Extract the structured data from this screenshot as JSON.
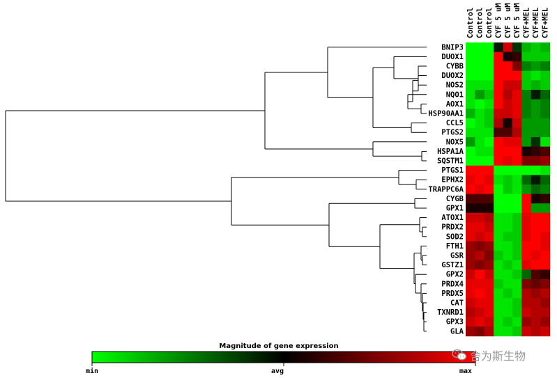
{
  "chart_data": {
    "type": "heatmap",
    "title": "",
    "xlabel": "",
    "ylabel": "",
    "columns": [
      "Control",
      "Control",
      "Control",
      "CYF 5 uM",
      "CYF 5 uM",
      "CYF 5 uM",
      "CYF+MEL",
      "CYF+MEL",
      "CYF+MEL"
    ],
    "rows": [
      "BNIP3",
      "DUOX1",
      "CYBB",
      "DUOX2",
      "NOS2",
      "NQO1",
      "AOX1",
      "HSP90AA1",
      "CCL5",
      "PTGS2",
      "NOX5",
      "HSPA1A",
      "SQSTM1",
      "PTGS1",
      "EPHX2",
      "TRAPPC6A",
      "CYGB",
      "GPX1",
      "ATOX1",
      "PRDX2",
      "SOD2",
      "FTH1",
      "GSR",
      "GSTZ1",
      "GPX2",
      "PRDX4",
      "PRDX5",
      "CAT",
      "TXNRD1",
      "GPX3",
      "GLA"
    ],
    "scale": "-1 = min (green), 0 = avg (black), 1 = max (red)",
    "values": [
      [
        -1,
        -1,
        -1,
        -0.1,
        0.8,
        -0.2,
        -0.7,
        -0.8,
        -0.7
      ],
      [
        -1,
        -1,
        -1,
        1,
        0.1,
        0.2,
        -0.8,
        -0.8,
        -0.8
      ],
      [
        -1,
        -1,
        -1,
        1,
        1,
        0.5,
        -0.5,
        -0.6,
        -0.5
      ],
      [
        -1,
        -1,
        -1,
        1,
        1,
        1,
        -0.8,
        -0.9,
        -0.8
      ],
      [
        -0.9,
        -0.9,
        -0.9,
        1,
        0.8,
        0.8,
        -0.8,
        -0.7,
        -0.8
      ],
      [
        -0.9,
        -0.6,
        -0.8,
        1,
        0.7,
        0.9,
        -0.5,
        -0.1,
        -0.4
      ],
      [
        -0.9,
        -1,
        -0.9,
        1,
        0.8,
        0.9,
        -0.5,
        -0.6,
        -0.5
      ],
      [
        -0.7,
        -0.9,
        -0.8,
        0.8,
        0.8,
        0.9,
        -0.5,
        -0.6,
        -0.5
      ],
      [
        -1,
        -0.9,
        -0.8,
        0.7,
        0.1,
        0.8,
        -0.6,
        -0.6,
        -0.6
      ],
      [
        -0.9,
        -0.9,
        -0.9,
        0.3,
        0.3,
        0.7,
        -0.6,
        -0.6,
        -0.6
      ],
      [
        -0.6,
        -0.9,
        -1,
        1,
        0.9,
        0.9,
        -0.6,
        -0.2,
        -0.9
      ],
      [
        -1,
        -0.9,
        -0.9,
        1,
        1,
        1,
        0.1,
        0.2,
        0.3
      ],
      [
        -1,
        -1,
        -1,
        1,
        0.9,
        1,
        0.5,
        0.5,
        0.6
      ],
      [
        1,
        1,
        1,
        -1,
        -1,
        -1,
        -1,
        -1,
        -0.9
      ],
      [
        0.9,
        1,
        0.9,
        -0.9,
        -0.8,
        -0.9,
        -0.4,
        -0.1,
        -0.4
      ],
      [
        1,
        0.9,
        1,
        -1,
        -0.8,
        -0.9,
        -0.6,
        -0.4,
        -0.5
      ],
      [
        0.3,
        0.3,
        0.3,
        -1,
        -1,
        -1,
        1,
        0.1,
        0.2
      ],
      [
        0.1,
        0.1,
        0.1,
        -1,
        -1,
        -1,
        1,
        -0.6,
        -0.6
      ],
      [
        0.8,
        0.8,
        0.7,
        -0.9,
        -0.9,
        -0.8,
        0.9,
        1,
        1
      ],
      [
        0.9,
        0.9,
        0.8,
        -0.9,
        -0.9,
        -0.8,
        0.9,
        1,
        1
      ],
      [
        0.9,
        0.8,
        0.9,
        -0.9,
        -0.8,
        -0.8,
        0.9,
        1,
        0.9
      ],
      [
        0.6,
        0.5,
        0.6,
        -0.9,
        -0.9,
        -0.8,
        1,
        1,
        0.9
      ],
      [
        0.6,
        0.7,
        0.5,
        -0.8,
        -0.9,
        -0.8,
        1,
        0.9,
        1
      ],
      [
        0.6,
        0.5,
        0.6,
        -0.9,
        -0.8,
        -0.9,
        0.9,
        1,
        1
      ],
      [
        0.8,
        1,
        0.8,
        -0.9,
        -0.9,
        -0.8,
        -0.4,
        0.3,
        0.2
      ],
      [
        0.9,
        0.9,
        0.9,
        -0.8,
        -0.9,
        -0.9,
        0.5,
        0.4,
        0.5
      ],
      [
        0.9,
        1,
        0.9,
        -0.9,
        -0.8,
        -0.9,
        0.7,
        0.6,
        0.7
      ],
      [
        0.8,
        0.9,
        0.9,
        -0.9,
        -0.9,
        -0.8,
        0.7,
        0.7,
        0.6
      ],
      [
        0.7,
        0.8,
        0.9,
        -0.9,
        -0.9,
        -0.8,
        0.8,
        0.7,
        0.7
      ],
      [
        0.8,
        0.9,
        0.8,
        -0.9,
        -0.8,
        -0.9,
        0.6,
        0.7,
        0.6
      ],
      [
        0.6,
        0.5,
        0.7,
        -0.9,
        -0.9,
        -0.8,
        0.8,
        0.7,
        0.8
      ]
    ],
    "colors": {
      "min": "#00ff00",
      "avg": "#000000",
      "max": "#ff0000"
    },
    "legend": {
      "title": "Magnitude of gene expression",
      "min_label": "min",
      "avg_label": "avg",
      "max_label": "max"
    }
  },
  "watermark": {
    "text": "舍为斯生物",
    "icon": "wechat-icon"
  }
}
